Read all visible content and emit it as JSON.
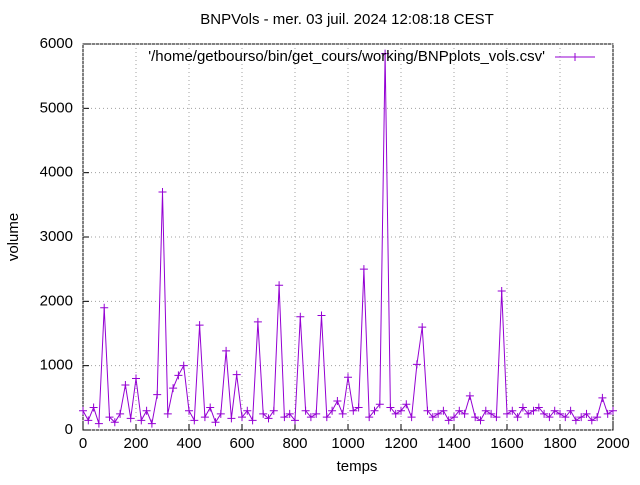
{
  "chart_data": {
    "type": "line",
    "title": "BNPVols - mer. 03 juil. 2024 12:08:18 CEST",
    "xlabel": "temps",
    "ylabel": "volume",
    "x": [
      0,
      20,
      40,
      60,
      80,
      100,
      120,
      140,
      160,
      180,
      200,
      220,
      240,
      260,
      280,
      300,
      320,
      340,
      360,
      380,
      400,
      420,
      440,
      460,
      480,
      500,
      520,
      540,
      560,
      580,
      600,
      620,
      640,
      660,
      680,
      700,
      720,
      740,
      760,
      780,
      800,
      820,
      840,
      860,
      880,
      900,
      920,
      940,
      960,
      980,
      1000,
      1020,
      1040,
      1060,
      1080,
      1100,
      1120,
      1140,
      1160,
      1180,
      1200,
      1220,
      1240,
      1260,
      1280,
      1300,
      1320,
      1340,
      1360,
      1380,
      1400,
      1420,
      1440,
      1460,
      1480,
      1500,
      1520,
      1540,
      1560,
      1580,
      1600,
      1620,
      1640,
      1660,
      1680,
      1700,
      1720,
      1740,
      1760,
      1780,
      1800,
      1820,
      1840,
      1860,
      1880,
      1900,
      1920,
      1940,
      1960,
      1980,
      2000
    ],
    "series": [
      {
        "name": "'/home/getbourso/bin/get_cours/working/BNPplots_vols.csv'",
        "color": "#9400d3",
        "values": [
          300,
          150,
          350,
          100,
          1900,
          200,
          120,
          250,
          700,
          180,
          800,
          150,
          300,
          100,
          550,
          3700,
          250,
          650,
          850,
          1000,
          300,
          150,
          1630,
          200,
          350,
          120,
          250,
          1230,
          180,
          860,
          200,
          300,
          150,
          1680,
          250,
          180,
          300,
          2250,
          200,
          250,
          150,
          1760,
          300,
          200,
          250,
          1780,
          200,
          300,
          450,
          250,
          820,
          300,
          350,
          2500,
          200,
          300,
          400,
          5850,
          350,
          250,
          300,
          400,
          200,
          1020,
          1600,
          300,
          200,
          250,
          300,
          150,
          200,
          300,
          250,
          530,
          200,
          150,
          300,
          250,
          200,
          2160,
          250,
          300,
          200,
          350,
          250,
          300,
          350,
          250,
          200,
          300,
          250,
          200,
          300,
          150,
          200,
          250,
          150,
          200,
          500,
          250,
          300
        ]
      }
    ],
    "xlim": [
      0,
      2000
    ],
    "xticks": [
      0,
      200,
      400,
      600,
      800,
      1000,
      1200,
      1400,
      1600,
      1800,
      2000
    ],
    "ylim": [
      0,
      6000
    ],
    "yticks": [
      0,
      1000,
      2000,
      3000,
      4000,
      5000,
      6000
    ],
    "grid": true,
    "legend": "top-right"
  }
}
